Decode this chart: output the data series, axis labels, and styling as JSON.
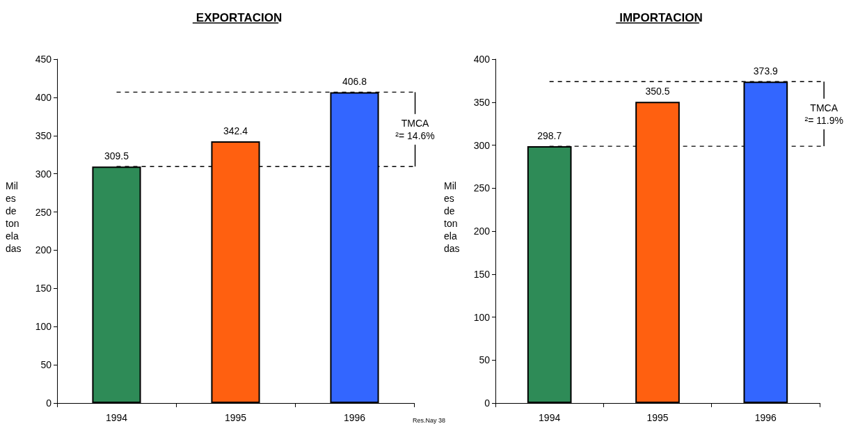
{
  "chart_data": [
    {
      "type": "bar",
      "title": "EXPORTACION",
      "ylabel": "Miles de toneladas",
      "categories": [
        "1994",
        "1995",
        "1996"
      ],
      "values": [
        309.5,
        342.4,
        406.8
      ],
      "colors": [
        "#2e8b57",
        "#ff6010",
        "#3366ff"
      ],
      "ylim": [
        0,
        450
      ],
      "yticks": [
        0,
        50,
        100,
        150,
        200,
        250,
        300,
        350,
        400,
        450
      ],
      "data_labels": true,
      "grid": false,
      "ref_lines": [
        {
          "axis": "y",
          "value": 309.5,
          "color": "#000000",
          "line_style": "dashed"
        },
        {
          "axis": "y",
          "value": 406.8,
          "color": "#000000",
          "line_style": "dashed"
        }
      ],
      "annotations": [
        "TMCA ²= 14.6%",
        "Res.Nay 38"
      ]
    },
    {
      "type": "bar",
      "title": "IMPORTACION",
      "ylabel": "Miles de toneladas",
      "categories": [
        "1994",
        "1995",
        "1996"
      ],
      "values": [
        298.7,
        350.5,
        373.9
      ],
      "colors": [
        "#2e8b57",
        "#ff6010",
        "#3366ff"
      ],
      "ylim": [
        0,
        400
      ],
      "yticks": [
        0,
        50,
        100,
        150,
        200,
        250,
        300,
        350,
        400
      ],
      "data_labels": true,
      "grid": false,
      "ref_lines": [
        {
          "axis": "y",
          "value": 298.7,
          "color": "#000000",
          "line_style": "dashed"
        },
        {
          "axis": "y",
          "value": 373.9,
          "color": "#000000",
          "line_style": "dashed"
        }
      ],
      "annotations": [
        "TMCA ²= 11.9%"
      ]
    }
  ]
}
